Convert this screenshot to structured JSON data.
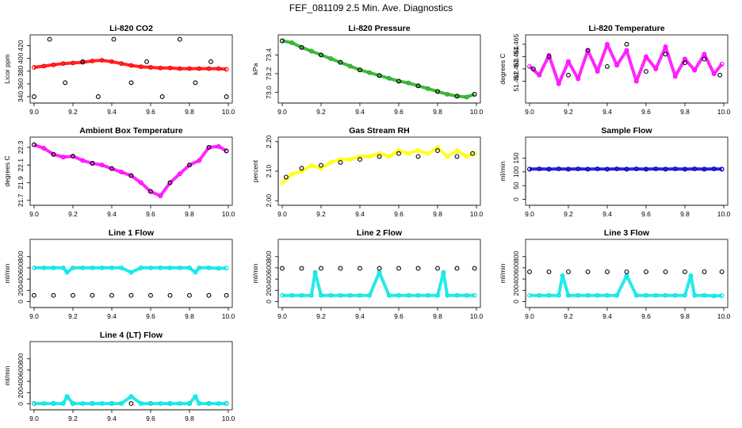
{
  "title": "FEF_081109  2.5 Min. Ave. Diagnostics",
  "chart_data": [
    {
      "type": "scatter",
      "title": "Li-820 CO2",
      "ylabel": "Licor ppm",
      "xlim": [
        9.0,
        10.0
      ],
      "ylim": [
        335,
        432
      ],
      "xticks": [
        "9.0",
        "9.2",
        "9.4",
        "9.6",
        "9.8",
        "10.0"
      ],
      "yticks": [
        "340",
        "360",
        "380",
        "400",
        "420"
      ],
      "series": [
        {
          "name": "2.5 min ave",
          "color": "#ff0000",
          "x": [
            9.0,
            9.05,
            9.1,
            9.15,
            9.2,
            9.25,
            9.3,
            9.35,
            9.4,
            9.45,
            9.5,
            9.55,
            9.6,
            9.65,
            9.7,
            9.75,
            9.8,
            9.85,
            9.9,
            9.95,
            9.99
          ],
          "y": [
            386,
            388,
            390,
            392,
            393,
            394,
            396,
            397,
            395,
            392,
            389,
            387,
            386,
            385,
            385,
            384,
            384,
            384,
            384,
            384,
            383
          ]
        },
        {
          "name": "diagnostic",
          "color": "#000000",
          "x": [
            9.0,
            9.08,
            9.16,
            9.25,
            9.33,
            9.41,
            9.5,
            9.58,
            9.66,
            9.75,
            9.83,
            9.91,
            9.99
          ],
          "y": [
            340,
            430,
            362,
            395,
            340,
            430,
            362,
            395,
            340,
            430,
            362,
            395,
            340
          ]
        }
      ]
    },
    {
      "type": "scatter",
      "title": "Li-820 Pressure",
      "ylabel": "kPa",
      "xlim": [
        9.0,
        10.0
      ],
      "ylim": [
        72.92,
        73.58
      ],
      "xticks": [
        "9.0",
        "9.2",
        "9.4",
        "9.6",
        "9.8",
        "10.0"
      ],
      "yticks": [
        "73.0",
        "73.2",
        "73.4"
      ],
      "series": [
        {
          "name": "2.5 min ave",
          "color": "#22aa22",
          "x": [
            9.0,
            9.05,
            9.1,
            9.15,
            9.2,
            9.25,
            9.3,
            9.35,
            9.4,
            9.45,
            9.5,
            9.55,
            9.6,
            9.65,
            9.7,
            9.75,
            9.8,
            9.85,
            9.9,
            9.95,
            9.99
          ],
          "y": [
            73.55,
            73.53,
            73.48,
            73.44,
            73.4,
            73.36,
            73.32,
            73.28,
            73.24,
            73.21,
            73.18,
            73.15,
            73.12,
            73.1,
            73.07,
            73.04,
            73.01,
            72.98,
            72.96,
            72.95,
            72.98
          ]
        },
        {
          "name": "diagnostic",
          "color": "#000000",
          "x": [
            9.0,
            9.1,
            9.2,
            9.3,
            9.4,
            9.5,
            9.6,
            9.7,
            9.8,
            9.9,
            9.99
          ],
          "y": [
            73.55,
            73.48,
            73.4,
            73.32,
            73.24,
            73.18,
            73.12,
            73.07,
            73.01,
            72.96,
            72.98
          ]
        }
      ]
    },
    {
      "type": "scatter",
      "title": "Li-820 Temperature",
      "ylabel": "degrees C",
      "xlim": [
        9.0,
        10.0
      ],
      "ylim": [
        51.4605,
        51.4655
      ],
      "xticks": [
        "9.0",
        "9.2",
        "9.4",
        "9.6",
        "9.8",
        "10.0"
      ],
      "yticks": [
        "51.462",
        "51.463",
        "51.464",
        "51.465"
      ],
      "series": [
        {
          "name": "2.5 min ave",
          "color": "#ff00ff",
          "x": [
            9.0,
            9.05,
            9.1,
            9.15,
            9.2,
            9.25,
            9.3,
            9.35,
            9.4,
            9.45,
            9.5,
            9.55,
            9.6,
            9.65,
            9.7,
            9.75,
            9.8,
            9.85,
            9.9,
            9.95,
            9.99
          ],
          "y": [
            51.4632,
            51.4625,
            51.4641,
            51.4618,
            51.4636,
            51.4622,
            51.4645,
            51.4628,
            51.465,
            51.4633,
            51.4645,
            51.462,
            51.464,
            51.463,
            51.4648,
            51.4624,
            51.4638,
            51.4629,
            51.4642,
            51.4626,
            51.4634
          ]
        },
        {
          "name": "diagnostic",
          "color": "#000000",
          "x": [
            9.02,
            9.1,
            9.2,
            9.3,
            9.4,
            9.5,
            9.6,
            9.7,
            9.8,
            9.9,
            9.98
          ],
          "y": [
            51.463,
            51.464,
            51.4625,
            51.4645,
            51.4632,
            51.465,
            51.4628,
            51.4642,
            51.4635,
            51.4638,
            51.4625
          ]
        }
      ]
    },
    {
      "type": "scatter",
      "title": "Ambient Box Temperature",
      "ylabel": "degrees C",
      "xlim": [
        9.0,
        10.0
      ],
      "ylim": [
        21.68,
        22.38
      ],
      "xticks": [
        "9.0",
        "9.2",
        "9.4",
        "9.6",
        "9.8",
        "10.0"
      ],
      "yticks": [
        "21.7",
        "21.9",
        "22.1",
        "22.3"
      ],
      "series": [
        {
          "name": "2.5 min ave",
          "color": "#ff00ff",
          "x": [
            9.0,
            9.05,
            9.1,
            9.15,
            9.2,
            9.25,
            9.3,
            9.35,
            9.4,
            9.45,
            9.5,
            9.55,
            9.6,
            9.65,
            9.7,
            9.75,
            9.8,
            9.85,
            9.9,
            9.95,
            9.99
          ],
          "y": [
            22.33,
            22.29,
            22.22,
            22.19,
            22.2,
            22.15,
            22.12,
            22.1,
            22.06,
            22.02,
            21.98,
            21.9,
            21.8,
            21.75,
            21.9,
            22.0,
            22.1,
            22.15,
            22.3,
            22.31,
            22.26
          ]
        },
        {
          "name": "diagnostic",
          "color": "#000000",
          "x": [
            9.0,
            9.1,
            9.2,
            9.3,
            9.4,
            9.5,
            9.6,
            9.7,
            9.8,
            9.9,
            9.99
          ],
          "y": [
            22.33,
            22.22,
            22.2,
            22.12,
            22.06,
            21.98,
            21.8,
            21.9,
            22.1,
            22.3,
            22.26
          ]
        }
      ]
    },
    {
      "type": "scatter",
      "title": "Gas Stream RH",
      "ylabel": "percent",
      "xlim": [
        9.0,
        10.0
      ],
      "ylim": [
        1.995,
        2.205
      ],
      "xticks": [
        "9.0",
        "9.2",
        "9.4",
        "9.6",
        "9.8",
        "10.0"
      ],
      "yticks": [
        "2.00",
        "2.10",
        "2.20"
      ],
      "series": [
        {
          "name": "2.5 min ave",
          "color": "#ffff00",
          "x": [
            9.0,
            9.05,
            9.1,
            9.15,
            9.2,
            9.25,
            9.3,
            9.35,
            9.4,
            9.45,
            9.5,
            9.55,
            9.6,
            9.65,
            9.7,
            9.75,
            9.8,
            9.85,
            9.9,
            9.95,
            9.99
          ],
          "y": [
            2.06,
            2.09,
            2.1,
            2.12,
            2.11,
            2.13,
            2.14,
            2.14,
            2.15,
            2.15,
            2.16,
            2.15,
            2.17,
            2.16,
            2.17,
            2.16,
            2.18,
            2.15,
            2.17,
            2.15,
            2.16
          ]
        },
        {
          "name": "diagnostic",
          "color": "#000000",
          "x": [
            9.02,
            9.1,
            9.2,
            9.3,
            9.4,
            9.5,
            9.6,
            9.7,
            9.8,
            9.9,
            9.98
          ],
          "y": [
            2.08,
            2.11,
            2.12,
            2.13,
            2.14,
            2.15,
            2.16,
            2.15,
            2.17,
            2.15,
            2.16
          ]
        }
      ]
    },
    {
      "type": "scatter",
      "title": "Sample Flow",
      "ylabel": "ml/min",
      "xlim": [
        9.0,
        10.0
      ],
      "ylim": [
        -10,
        215
      ],
      "xticks": [
        "9.0",
        "9.2",
        "9.4",
        "9.6",
        "9.8",
        "10.0"
      ],
      "yticks": [
        "0",
        "50",
        "100",
        "150"
      ],
      "series": [
        {
          "name": "diagnostic",
          "color": "#000000",
          "x": [
            9.0,
            9.1,
            9.2,
            9.3,
            9.4,
            9.5,
            9.6,
            9.7,
            9.8,
            9.9,
            9.99
          ],
          "y": [
            110,
            110,
            110,
            110,
            110,
            110,
            110,
            110,
            110,
            110,
            110
          ]
        },
        {
          "name": "2.5 min ave",
          "color": "#0000cc",
          "x": [
            9.0,
            9.05,
            9.1,
            9.15,
            9.2,
            9.25,
            9.3,
            9.35,
            9.4,
            9.45,
            9.5,
            9.55,
            9.6,
            9.65,
            9.7,
            9.75,
            9.8,
            9.85,
            9.9,
            9.95,
            9.99
          ],
          "y": [
            110,
            111,
            110,
            111,
            110,
            111,
            110,
            111,
            110,
            111,
            110,
            111,
            110,
            111,
            110,
            111,
            110,
            111,
            110,
            111,
            110
          ]
        }
      ]
    },
    {
      "type": "scatter",
      "title": "Line 1 Flow",
      "ylabel": "ml/min",
      "xlim": [
        9.0,
        10.0
      ],
      "ylim": [
        -50,
        1050
      ],
      "xticks": [
        "9.0",
        "9.2",
        "9.4",
        "9.6",
        "9.8",
        "10.0"
      ],
      "yticks": [
        "0",
        "200",
        "400",
        "600",
        "800"
      ],
      "series": [
        {
          "name": "2.5 min ave",
          "color": "#00e5e5",
          "x": [
            9.0,
            9.05,
            9.1,
            9.15,
            9.17,
            9.2,
            9.25,
            9.3,
            9.35,
            9.4,
            9.45,
            9.5,
            9.55,
            9.6,
            9.65,
            9.7,
            9.75,
            9.8,
            9.83,
            9.85,
            9.9,
            9.95,
            9.99
          ],
          "y": [
            600,
            600,
            600,
            600,
            520,
            600,
            600,
            600,
            600,
            600,
            600,
            520,
            600,
            600,
            600,
            600,
            600,
            600,
            520,
            600,
            600,
            590,
            595
          ]
        },
        {
          "name": "diagnostic",
          "color": "#000000",
          "x": [
            9.0,
            9.1,
            9.2,
            9.3,
            9.4,
            9.5,
            9.6,
            9.7,
            9.8,
            9.9,
            9.99
          ],
          "y": [
            110,
            110,
            110,
            110,
            110,
            110,
            110,
            110,
            110,
            110,
            110
          ]
        }
      ]
    },
    {
      "type": "scatter",
      "title": "Line 2 Flow",
      "ylabel": "ml/min",
      "xlim": [
        9.0,
        10.0
      ],
      "ylim": [
        -50,
        1050
      ],
      "xticks": [
        "9.0",
        "9.2",
        "9.4",
        "9.6",
        "9.8",
        "10.0"
      ],
      "yticks": [
        "0",
        "200",
        "400",
        "600",
        "800"
      ],
      "series": [
        {
          "name": "2.5 min ave",
          "color": "#00e5e5",
          "x": [
            9.0,
            9.05,
            9.1,
            9.15,
            9.17,
            9.2,
            9.25,
            9.3,
            9.35,
            9.4,
            9.45,
            9.5,
            9.55,
            9.6,
            9.65,
            9.7,
            9.75,
            9.8,
            9.83,
            9.85,
            9.9,
            9.95,
            9.99
          ],
          "y": [
            110,
            110,
            110,
            110,
            520,
            110,
            110,
            110,
            110,
            110,
            110,
            520,
            110,
            110,
            110,
            110,
            110,
            110,
            520,
            110,
            110,
            110,
            110
          ]
        },
        {
          "name": "diagnostic",
          "color": "#000000",
          "x": [
            9.0,
            9.1,
            9.2,
            9.3,
            9.4,
            9.5,
            9.6,
            9.7,
            9.8,
            9.9,
            9.99
          ],
          "y": [
            590,
            590,
            590,
            590,
            590,
            590,
            590,
            590,
            590,
            590,
            590
          ]
        }
      ]
    },
    {
      "type": "scatter",
      "title": "Line 3 Flow",
      "ylabel": "ml/min",
      "xlim": [
        9.0,
        10.0
      ],
      "ylim": [
        -50,
        1050
      ],
      "xticks": [
        "9.0",
        "9.2",
        "9.4",
        "9.6",
        "9.8",
        "10.0"
      ],
      "yticks": [
        "0",
        "200",
        "400",
        "600",
        "800"
      ],
      "series": [
        {
          "name": "2.5 min ave",
          "color": "#00e5e5",
          "x": [
            9.0,
            9.05,
            9.1,
            9.15,
            9.17,
            9.2,
            9.25,
            9.3,
            9.35,
            9.4,
            9.45,
            9.5,
            9.55,
            9.6,
            9.65,
            9.7,
            9.75,
            9.8,
            9.83,
            9.85,
            9.9,
            9.95,
            9.99
          ],
          "y": [
            110,
            110,
            110,
            110,
            460,
            110,
            110,
            110,
            110,
            110,
            110,
            460,
            110,
            110,
            110,
            110,
            110,
            110,
            460,
            110,
            110,
            100,
            105
          ]
        },
        {
          "name": "diagnostic",
          "color": "#000000",
          "x": [
            9.0,
            9.1,
            9.2,
            9.3,
            9.4,
            9.5,
            9.6,
            9.7,
            9.8,
            9.9,
            9.99
          ],
          "y": [
            530,
            530,
            530,
            530,
            530,
            530,
            530,
            530,
            530,
            530,
            530
          ]
        }
      ]
    },
    {
      "type": "scatter",
      "title": "Line 4 (LT) Flow",
      "ylabel": "ml/min",
      "xlim": [
        9.0,
        10.0
      ],
      "ylim": [
        -50,
        1050
      ],
      "xticks": [
        "9.0",
        "9.2",
        "9.4",
        "9.6",
        "9.8",
        "10.0"
      ],
      "yticks": [
        "0",
        "200",
        "400",
        "600",
        "800"
      ],
      "series": [
        {
          "name": "diagnostic",
          "color": "#000000",
          "x": [
            9.0,
            9.1,
            9.2,
            9.3,
            9.4,
            9.5,
            9.6,
            9.7,
            9.8,
            9.9,
            9.99
          ],
          "y": [
            5,
            5,
            5,
            5,
            5,
            5,
            5,
            5,
            5,
            5,
            5
          ]
        },
        {
          "name": "2.5 min ave",
          "color": "#00e5e5",
          "x": [
            9.0,
            9.05,
            9.1,
            9.15,
            9.17,
            9.2,
            9.25,
            9.3,
            9.35,
            9.4,
            9.45,
            9.5,
            9.55,
            9.6,
            9.65,
            9.7,
            9.75,
            9.8,
            9.83,
            9.85,
            9.9,
            9.95,
            9.99
          ],
          "y": [
            5,
            5,
            5,
            5,
            130,
            5,
            5,
            5,
            5,
            5,
            5,
            130,
            5,
            5,
            5,
            5,
            5,
            5,
            130,
            5,
            5,
            5,
            5
          ]
        }
      ]
    }
  ]
}
